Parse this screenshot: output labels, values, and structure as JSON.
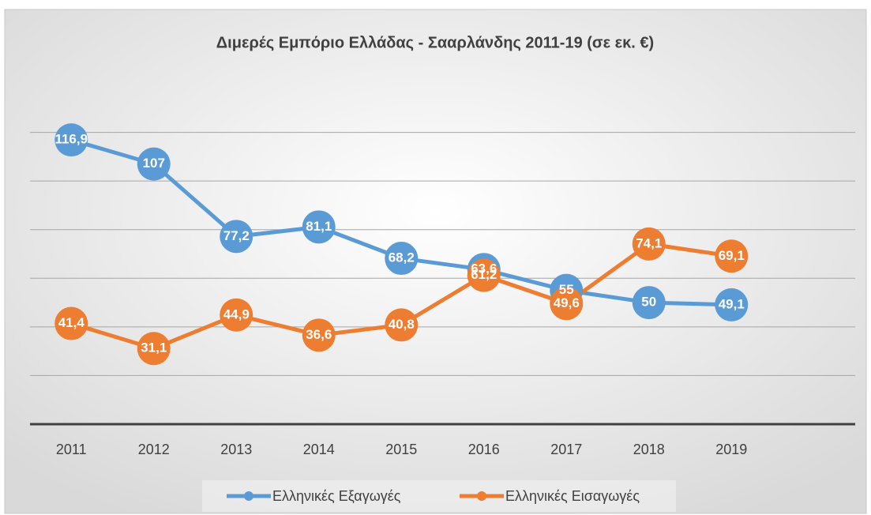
{
  "chart_data": {
    "type": "line",
    "title": "Διμερές Εμπόριο Ελλάδας - Σααρλάνδης 2011-19 (σε εκ. €)",
    "categories": [
      "2011",
      "2012",
      "2013",
      "2014",
      "2015",
      "2016",
      "2017",
      "2018",
      "2019"
    ],
    "series": [
      {
        "name": "Ελληνικές Εξαγωγές",
        "color": "#5b9bd5",
        "values": [
          116.9,
          107,
          77.2,
          81.1,
          68.2,
          63.6,
          55,
          50,
          49.1
        ],
        "value_labels": [
          "116,9",
          "107",
          "77,2",
          "81,1",
          "68,2",
          "63,6",
          "55",
          "50",
          "49,1"
        ]
      },
      {
        "name": "Ελληνικές Εισαγωγές",
        "color": "#ed7d31",
        "values": [
          41.4,
          31.1,
          44.9,
          36.6,
          40.8,
          61.2,
          49.6,
          74.1,
          69.1
        ],
        "value_labels": [
          "41,4",
          "31,1",
          "44,9",
          "36,6",
          "40,8",
          "61,2",
          "49,6",
          "74,1",
          "69,1"
        ]
      }
    ],
    "ylim": [
      0,
      140
    ],
    "yticks": [
      0,
      20,
      40,
      60,
      80,
      100,
      120
    ],
    "grid": true,
    "legend": "bottom"
  }
}
